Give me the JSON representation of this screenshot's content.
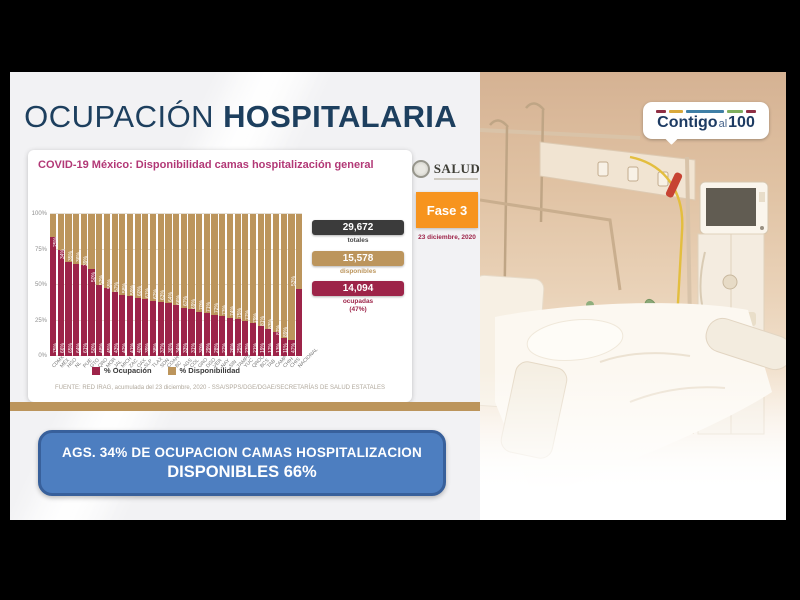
{
  "header": {
    "title_light": "OCUPACIÓN",
    "title_bold": "HOSPITALARIA"
  },
  "salud_logo": {
    "text": "SALUD"
  },
  "phase_badge": {
    "label": "Fase 3",
    "date": "23 diciembre, 2020",
    "color": "#f7941e"
  },
  "contigo_logo": {
    "part1": "Contigo",
    "part2": "al",
    "part3": "100",
    "dash_colors": [
      "#8f2f44",
      "#d9a93c",
      "#3f7fa6",
      "#7fae5e",
      "#8f2f44"
    ]
  },
  "chart_data": {
    "type": "bar",
    "stacked": true,
    "title": "COVID-19 México: Disponibilidad camas hospitalización general",
    "categories": [
      "CDMX",
      "MÉX",
      "HGO",
      "NL",
      "PUE",
      "GTO",
      "QRO",
      "MOR",
      "JAL",
      "MICH",
      "ZAC",
      "OAX",
      "SLP",
      "TLAX",
      "SON",
      "COAH",
      "BC",
      "AGS",
      "COL",
      "GRO",
      "DGO",
      "VER",
      "NAY",
      "SIN",
      "TAMPS",
      "YUC",
      "QROO",
      "BCS",
      "TAB",
      "CAMP",
      "CHIH",
      "CHIS",
      "NACIONAL"
    ],
    "series": [
      {
        "name": "% Ocupación",
        "color": "#9d2449",
        "values": [
          84,
          75,
          66,
          65,
          64,
          61,
          50,
          48,
          45,
          43,
          42,
          41,
          40,
          39,
          38,
          37,
          36,
          34,
          33,
          31,
          30,
          29,
          28,
          27,
          26,
          25,
          23,
          21,
          19,
          17,
          13,
          11,
          47
        ]
      },
      {
        "name": "% Disponibilidad",
        "color": "#bc955c",
        "values": [
          16,
          25,
          34,
          35,
          36,
          39,
          50,
          52,
          55,
          57,
          58,
          59,
          60,
          61,
          62,
          63,
          64,
          66,
          67,
          69,
          70,
          71,
          72,
          73,
          74,
          75,
          77,
          79,
          81,
          83,
          87,
          89,
          53
        ]
      }
    ],
    "ylim": [
      0,
      100
    ],
    "yticks": [
      "100%",
      "75%",
      "50%",
      "25%",
      "0%"
    ],
    "grid": true,
    "legend_position": "bottom",
    "annotations": [
      {
        "value": "29,672",
        "label": "totales",
        "sublabel": "",
        "color": "#3b3b3b"
      },
      {
        "value": "15,578",
        "label": "disponibles",
        "sublabel": "",
        "color": "#bc955c"
      },
      {
        "value": "14,094",
        "label": "ocupadas",
        "sublabel": "(47%)",
        "color": "#9d2449"
      }
    ],
    "source": "FUENTE: RED IRAG, acumulada del 23 diciembre, 2020 - SSA/SPPS/DGE/DGAE/SECRETARÍAS DE SALUD ESTATALES"
  },
  "banner": {
    "line1": "AGS. 34% DE OCUPACION CAMAS HOSPITALIZACION",
    "line2": "DISPONIBLES 66%",
    "fill": "#4d7ec0",
    "border": "#38609b"
  },
  "colors": {
    "occupied": "#9d2449",
    "available": "#bc955c",
    "title_navy": "#1d3f5e",
    "chart_title_pink": "#b23876",
    "gold_strip": "#bc955c",
    "phase_orange": "#f7941e"
  }
}
